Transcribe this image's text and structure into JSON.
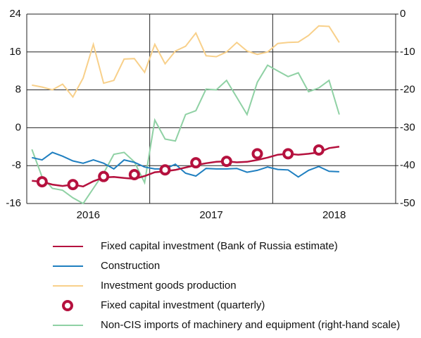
{
  "chart_data": {
    "type": "line",
    "x": [
      0,
      1,
      2,
      3,
      4,
      5,
      6,
      7,
      8,
      9,
      10,
      11,
      12,
      13,
      14,
      15,
      16,
      17,
      18,
      19,
      20,
      21,
      22,
      23,
      24,
      25,
      26,
      27,
      28,
      29,
      30
    ],
    "xlim": [
      -0.5,
      35.5
    ],
    "xticks": [
      {
        "value": 5.5,
        "label": "2016"
      },
      {
        "value": 17.5,
        "label": "2017"
      },
      {
        "value": 29.5,
        "label": "2018"
      }
    ],
    "xgrid": [
      11.5,
      23.5
    ],
    "ylim": [
      -16,
      24
    ],
    "yticks": [
      -16,
      -8,
      0,
      8,
      16,
      24
    ],
    "y2lim": [
      -50,
      0
    ],
    "y2ticks": [
      -50,
      -40,
      -30,
      -20,
      -10,
      0
    ],
    "grid": true,
    "series": [
      {
        "name": "Fixed capital investment (Bank of Russia estimate)",
        "color": "#b5113e",
        "values": [
          -11.2,
          -11.4,
          -12,
          -12.3,
          -12,
          -12.4,
          -11.3,
          -10.5,
          -10.4,
          -10.6,
          -10.8,
          -10.2,
          -9.4,
          -9.2,
          -8.9,
          -8.4,
          -7.9,
          -7.5,
          -7.2,
          -7.1,
          -7.3,
          -7.2,
          -6.8,
          -6.3,
          -5.7,
          -5.5,
          -5.7,
          -5.5,
          -5.2,
          -4.3,
          -4.0
        ]
      },
      {
        "name": "Construction",
        "color": "#1f7fc0",
        "values": [
          -6.3,
          -6.8,
          -5.2,
          -6,
          -7,
          -7.5,
          -6.8,
          -7.5,
          -8.7,
          -6.8,
          -7.3,
          -8.3,
          -8.7,
          -8.7,
          -7.7,
          -9.6,
          -10.2,
          -8.6,
          -8.7,
          -8.7,
          -8.6,
          -9.4,
          -9,
          -8.3,
          -8.8,
          -8.9,
          -10.4,
          -9,
          -8.2,
          -9.2,
          -9.3
        ]
      },
      {
        "name": "Investment goods production",
        "color": "#f8d08a",
        "values": [
          9,
          8.6,
          8,
          9.2,
          6.5,
          10.5,
          17.6,
          9.4,
          10,
          14.5,
          14.6,
          11.7,
          17.6,
          13.5,
          16.2,
          17.2,
          20,
          15.2,
          15,
          16,
          18,
          16.2,
          15.5,
          16,
          17.8,
          18,
          18.1,
          19.5,
          21.5,
          21.4,
          18
        ]
      },
      {
        "name": "Fixed capital investment (quarterly)",
        "color": "#b5113e",
        "marker": true,
        "x": [
          1,
          4,
          7,
          10,
          13,
          16,
          19,
          22,
          25,
          28
        ],
        "values": [
          -11.4,
          -12,
          -10.3,
          -9.9,
          -8.9,
          -7.4,
          -7.1,
          -5.5,
          -5.5,
          -4.7
        ]
      },
      {
        "name": "Non-CIS imports of machinery and equipment (right-hand scale)",
        "color": "#8fd1a4",
        "axis": "y2",
        "values": [
          -35.7,
          -43,
          -46,
          -46.5,
          -48.5,
          -50,
          -46,
          -42,
          -37,
          -36.5,
          -39,
          -44.5,
          -28,
          -33,
          -33.5,
          -26.5,
          -25.5,
          -19.8,
          -20,
          -17.5,
          -22,
          -26.5,
          -18,
          -13.5,
          -15,
          -16.5,
          -15.5,
          -20.5,
          -19.5,
          -17.5,
          -26.5
        ]
      }
    ]
  }
}
